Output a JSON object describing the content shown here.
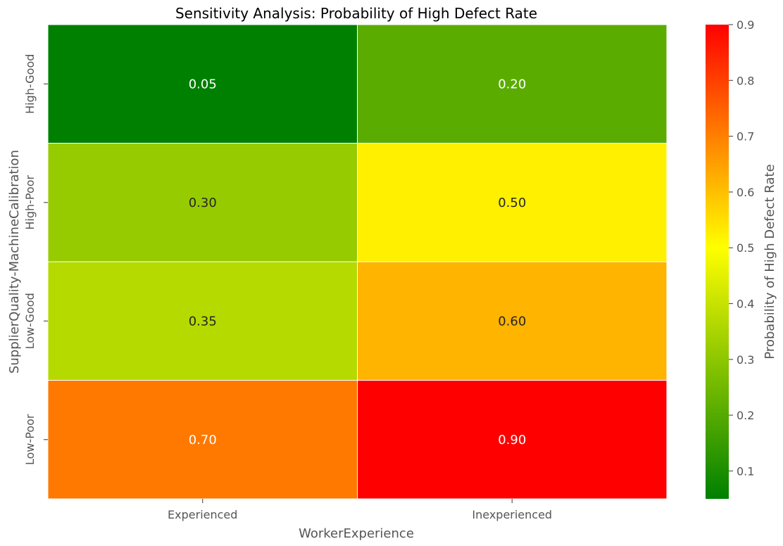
{
  "chart_data": {
    "type": "heatmap",
    "title": "Sensitivity Analysis: Probability of High Defect Rate",
    "xlabel": "WorkerExperience",
    "ylabel": "SupplierQuality-MachineCalibration",
    "x_categories": [
      "Experienced",
      "Inexperienced"
    ],
    "y_categories": [
      "High-Good",
      "High-Poor",
      "Low-Good",
      "Low-Poor"
    ],
    "values": [
      [
        0.05,
        0.2
      ],
      [
        0.3,
        0.5
      ],
      [
        0.35,
        0.6
      ],
      [
        0.7,
        0.9
      ]
    ],
    "value_labels": [
      [
        "0.05",
        "0.20"
      ],
      [
        "0.30",
        "0.50"
      ],
      [
        "0.35",
        "0.60"
      ],
      [
        "0.70",
        "0.90"
      ]
    ],
    "colorbar": {
      "label": "Probability of High Defect Rate",
      "range": [
        0.05,
        0.9
      ],
      "ticks": [
        0.1,
        0.2,
        0.3,
        0.4,
        0.5,
        0.6,
        0.7,
        0.8,
        0.9
      ],
      "tick_labels": [
        "0.1",
        "0.2",
        "0.3",
        "0.4",
        "0.5",
        "0.6",
        "0.7",
        "0.8",
        "0.9"
      ],
      "colors": [
        "#008000",
        "#ffff00",
        "#ff0000"
      ]
    },
    "annotation_colors": {
      "dark": "#262626",
      "light": "#ffffff"
    },
    "legend_position": "right"
  }
}
